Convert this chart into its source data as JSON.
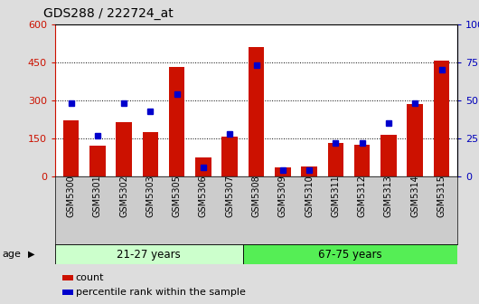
{
  "title": "GDS288 / 222724_at",
  "samples": [
    "GSM5300",
    "GSM5301",
    "GSM5302",
    "GSM5303",
    "GSM5305",
    "GSM5306",
    "GSM5307",
    "GSM5308",
    "GSM5309",
    "GSM5310",
    "GSM5311",
    "GSM5312",
    "GSM5313",
    "GSM5314",
    "GSM5315"
  ],
  "counts": [
    220,
    120,
    215,
    175,
    430,
    75,
    155,
    510,
    35,
    38,
    130,
    125,
    165,
    285,
    455
  ],
  "percentiles": [
    48,
    27,
    48,
    43,
    54,
    6,
    28,
    73,
    4,
    4,
    22,
    22,
    35,
    48,
    70
  ],
  "group1_label": "21-27 years",
  "group1_n": 7,
  "group2_label": "67-75 years",
  "group2_n": 8,
  "age_label": "age",
  "bar_color": "#cc1100",
  "dot_color": "#0000cc",
  "group1_color": "#ccffcc",
  "group2_color": "#55ee55",
  "left_axis_color": "#cc1100",
  "right_axis_color": "#0000bb",
  "left_yticks": [
    0,
    150,
    300,
    450,
    600
  ],
  "right_yticks": [
    0,
    25,
    50,
    75,
    100
  ],
  "ylim_left": [
    0,
    600
  ],
  "ylim_right": [
    0,
    100
  ],
  "legend_count_label": "count",
  "legend_pct_label": "percentile rank within the sample",
  "bg_color": "#dddddd",
  "plot_bg": "#ffffff",
  "xtick_bg": "#cccccc"
}
